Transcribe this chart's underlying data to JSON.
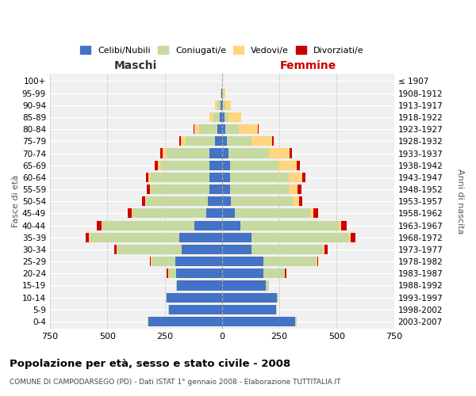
{
  "age_groups": [
    "0-4",
    "5-9",
    "10-14",
    "15-19",
    "20-24",
    "25-29",
    "30-34",
    "35-39",
    "40-44",
    "45-49",
    "50-54",
    "55-59",
    "60-64",
    "65-69",
    "70-74",
    "75-79",
    "80-84",
    "85-89",
    "90-94",
    "95-99",
    "100+"
  ],
  "birth_years": [
    "2003-2007",
    "1998-2002",
    "1993-1997",
    "1988-1992",
    "1983-1987",
    "1978-1982",
    "1973-1977",
    "1968-1972",
    "1963-1967",
    "1958-1962",
    "1953-1957",
    "1948-1952",
    "1943-1947",
    "1938-1942",
    "1933-1937",
    "1928-1932",
    "1923-1927",
    "1918-1922",
    "1913-1917",
    "1908-1912",
    "≤ 1907"
  ],
  "maschi": {
    "celibi": [
      320,
      230,
      240,
      195,
      200,
      205,
      175,
      185,
      120,
      70,
      60,
      55,
      55,
      55,
      55,
      30,
      20,
      8,
      5,
      2,
      0
    ],
    "coniugati": [
      5,
      5,
      5,
      5,
      30,
      100,
      280,
      390,
      400,
      320,
      270,
      255,
      255,
      210,
      185,
      130,
      80,
      30,
      15,
      3,
      0
    ],
    "vedovi": [
      0,
      0,
      0,
      0,
      5,
      5,
      5,
      5,
      5,
      5,
      5,
      5,
      10,
      15,
      20,
      20,
      20,
      15,
      10,
      2,
      0
    ],
    "divorziati": [
      0,
      0,
      0,
      0,
      5,
      5,
      10,
      15,
      20,
      15,
      15,
      12,
      12,
      12,
      10,
      5,
      5,
      0,
      0,
      0,
      0
    ]
  },
  "femmine": {
    "nubili": [
      320,
      235,
      240,
      190,
      180,
      180,
      130,
      130,
      80,
      55,
      40,
      35,
      35,
      35,
      30,
      20,
      15,
      10,
      5,
      2,
      0
    ],
    "coniugate": [
      5,
      5,
      5,
      15,
      90,
      230,
      310,
      420,
      430,
      330,
      270,
      255,
      255,
      210,
      175,
      110,
      60,
      20,
      10,
      3,
      0
    ],
    "vedove": [
      0,
      0,
      0,
      0,
      5,
      5,
      5,
      10,
      10,
      15,
      25,
      40,
      60,
      80,
      90,
      90,
      80,
      55,
      25,
      8,
      2
    ],
    "divorziate": [
      0,
      0,
      0,
      0,
      5,
      5,
      15,
      20,
      25,
      20,
      15,
      15,
      15,
      15,
      10,
      5,
      5,
      0,
      0,
      0,
      0
    ]
  },
  "colors": {
    "celibi": "#4472C4",
    "coniugati": "#C5D9A0",
    "vedovi": "#FFD580",
    "divorziati": "#CC0000"
  },
  "title": "Popolazione per età, sesso e stato civile - 2008",
  "subtitle": "COMUNE DI CAMPODARSEGO (PD) - Dati ISTAT 1° gennaio 2008 - Elaborazione TUTTITALIA.IT",
  "xlabel_left": "Maschi",
  "xlabel_right": "Femmine",
  "ylabel_left": "Fasce di età",
  "ylabel_right": "Anni di nascita",
  "xlim": 750,
  "background_color": "#ffffff",
  "plot_bg_color": "#f0f0f0",
  "grid_color": "#ffffff",
  "legend_labels": [
    "Celibi/Nubili",
    "Coniugati/e",
    "Vedovi/e",
    "Divorziati/e"
  ]
}
